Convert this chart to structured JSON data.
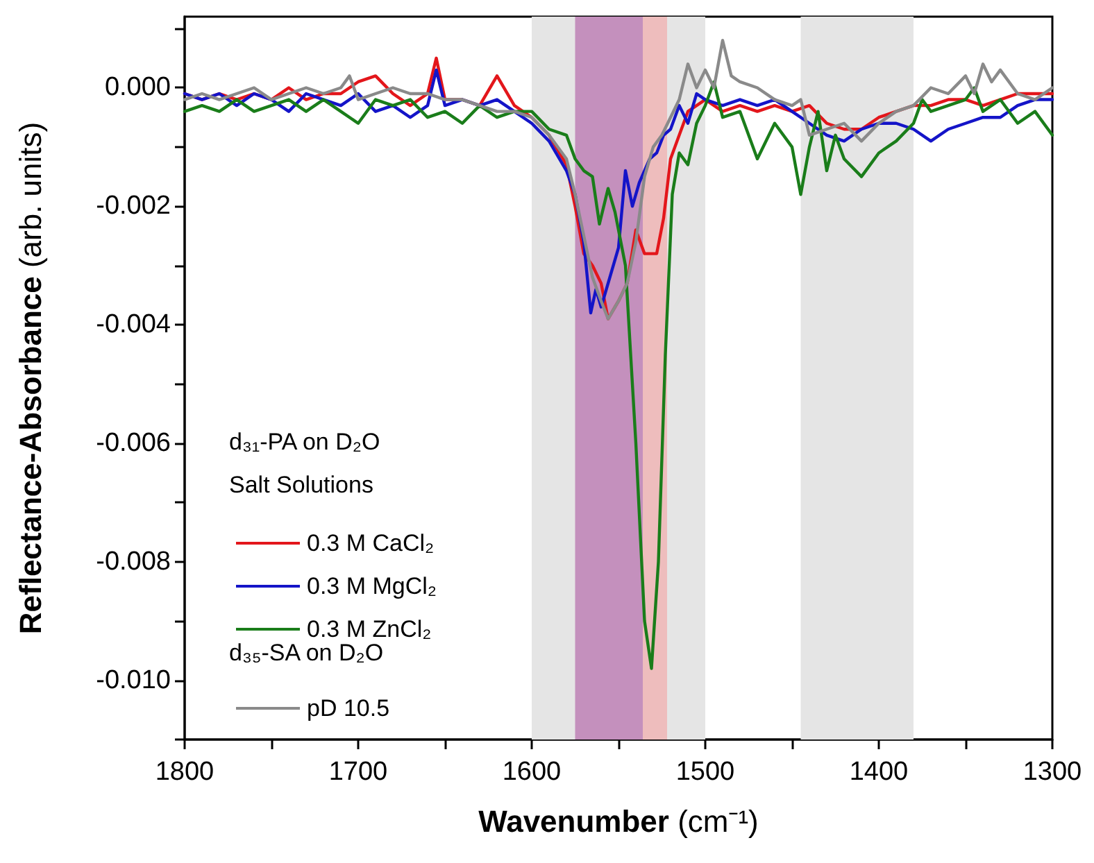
{
  "chart_data": {
    "type": "line",
    "xlabel": "Wavenumber (cm⁻¹)",
    "ylabel": "Reflectance-Absorbance (arb. units)",
    "annotations": [
      "d₃₁-PA on D₂O",
      "Salt Solutions",
      "d₃₅-SA on D₂O"
    ],
    "series": [
      {
        "name": "0.3 M CaCl₂",
        "color": "#e3161b",
        "x": [
          1800,
          1790,
          1780,
          1770,
          1760,
          1750,
          1740,
          1730,
          1720,
          1710,
          1700,
          1690,
          1680,
          1670,
          1660,
          1655,
          1650,
          1640,
          1630,
          1620,
          1610,
          1600,
          1590,
          1580,
          1575,
          1570,
          1565,
          1560,
          1556,
          1550,
          1545,
          1540,
          1535,
          1528,
          1524,
          1520,
          1515,
          1510,
          1500,
          1490,
          1480,
          1470,
          1460,
          1450,
          1440,
          1430,
          1420,
          1410,
          1400,
          1390,
          1380,
          1370,
          1360,
          1350,
          1340,
          1330,
          1320,
          1310,
          1300
        ],
        "values": [
          -0.0001,
          -0.0002,
          -0.0001,
          -0.0002,
          -0.0001,
          -0.0002,
          0.0,
          -0.0002,
          -0.0001,
          -0.0001,
          0.0001,
          0.0002,
          -0.0001,
          -0.0003,
          -0.0001,
          0.0005,
          -0.0002,
          -0.0002,
          -0.0003,
          0.0002,
          -0.0003,
          -0.0005,
          -0.0008,
          -0.0013,
          -0.002,
          -0.0028,
          -0.003,
          -0.0033,
          -0.0039,
          -0.0036,
          -0.0033,
          -0.0024,
          -0.0028,
          -0.0028,
          -0.0022,
          -0.0012,
          -0.0008,
          -0.0004,
          -0.0002,
          -0.0004,
          -0.0003,
          -0.0004,
          -0.0003,
          -0.0004,
          -0.0003,
          -0.0006,
          -0.0007,
          -0.0007,
          -0.0005,
          -0.0004,
          -0.0003,
          -0.0003,
          -0.0002,
          -0.0002,
          -0.0003,
          -0.0002,
          -0.0001,
          -0.0001,
          -0.0001
        ]
      },
      {
        "name": "0.3 M MgCl₂",
        "color": "#1414c8",
        "x": [
          1800,
          1790,
          1780,
          1770,
          1760,
          1750,
          1740,
          1730,
          1720,
          1710,
          1700,
          1690,
          1680,
          1670,
          1660,
          1655,
          1650,
          1640,
          1630,
          1620,
          1610,
          1600,
          1590,
          1580,
          1575,
          1570,
          1566,
          1563,
          1560,
          1555,
          1550,
          1546,
          1542,
          1538,
          1532,
          1528,
          1524,
          1520,
          1515,
          1510,
          1505,
          1500,
          1490,
          1480,
          1470,
          1460,
          1450,
          1440,
          1430,
          1420,
          1410,
          1400,
          1390,
          1380,
          1370,
          1360,
          1350,
          1340,
          1330,
          1320,
          1310,
          1300
        ],
        "values": [
          -0.0001,
          -0.0002,
          -0.0001,
          -0.0003,
          -0.0001,
          -0.0002,
          -0.0004,
          -0.0001,
          -0.0002,
          -0.0003,
          -0.0001,
          -0.0004,
          -0.0003,
          -0.0005,
          -0.0003,
          0.0003,
          -0.0003,
          -0.0002,
          -0.0003,
          -0.0002,
          -0.0004,
          -0.0006,
          -0.0009,
          -0.0014,
          -0.0018,
          -0.0026,
          -0.0038,
          -0.0034,
          -0.0037,
          -0.0032,
          -0.0027,
          -0.0014,
          -0.002,
          -0.0016,
          -0.0012,
          -0.0011,
          -0.0008,
          -0.0007,
          -0.0003,
          -0.0006,
          -0.0001,
          -0.0002,
          -0.0003,
          -0.0002,
          -0.0003,
          -0.0002,
          -0.0004,
          -0.0006,
          -0.0008,
          -0.0009,
          -0.0007,
          -0.0006,
          -0.0006,
          -0.0007,
          -0.0009,
          -0.0007,
          -0.0006,
          -0.0005,
          -0.0005,
          -0.0003,
          -0.0002,
          -0.0002
        ]
      },
      {
        "name": "0.3 M ZnCl₂",
        "color": "#1a7d1a",
        "x": [
          1800,
          1790,
          1780,
          1770,
          1760,
          1750,
          1740,
          1730,
          1720,
          1710,
          1700,
          1690,
          1680,
          1670,
          1660,
          1650,
          1640,
          1630,
          1620,
          1610,
          1600,
          1590,
          1580,
          1575,
          1570,
          1565,
          1561,
          1556,
          1552,
          1546,
          1540,
          1535,
          1531,
          1527,
          1523,
          1519,
          1515,
          1510,
          1505,
          1500,
          1495,
          1490,
          1480,
          1470,
          1460,
          1450,
          1445,
          1440,
          1435,
          1430,
          1425,
          1420,
          1410,
          1400,
          1390,
          1380,
          1375,
          1370,
          1360,
          1350,
          1345,
          1340,
          1330,
          1320,
          1310,
          1300
        ],
        "values": [
          -0.0004,
          -0.0003,
          -0.0004,
          -0.0002,
          -0.0004,
          -0.0003,
          -0.0002,
          -0.0004,
          -0.0002,
          -0.0004,
          -0.0006,
          -0.0002,
          -0.0003,
          -0.0002,
          -0.0005,
          -0.0004,
          -0.0006,
          -0.0003,
          -0.0005,
          -0.0004,
          -0.0004,
          -0.0007,
          -0.0008,
          -0.0012,
          -0.0014,
          -0.0015,
          -0.0023,
          -0.0017,
          -0.0021,
          -0.003,
          -0.006,
          -0.009,
          -0.0098,
          -0.008,
          -0.0045,
          -0.0018,
          -0.0011,
          -0.0013,
          -0.0006,
          -0.0003,
          0.0001,
          -0.0005,
          -0.0004,
          -0.0012,
          -0.0006,
          -0.001,
          -0.0018,
          -0.001,
          -0.0004,
          -0.0014,
          -0.0008,
          -0.0012,
          -0.0015,
          -0.0011,
          -0.0009,
          -0.0006,
          -0.0002,
          -0.0004,
          -0.0003,
          -0.0002,
          0.0,
          -0.0004,
          -0.0002,
          -0.0006,
          -0.0004,
          -0.0008
        ]
      },
      {
        "name": "pD 10.5",
        "color": "#8a8a8a",
        "x": [
          1800,
          1790,
          1780,
          1770,
          1760,
          1750,
          1740,
          1730,
          1720,
          1710,
          1705,
          1700,
          1690,
          1680,
          1670,
          1660,
          1650,
          1640,
          1630,
          1620,
          1610,
          1600,
          1590,
          1580,
          1575,
          1570,
          1565,
          1560,
          1556,
          1550,
          1545,
          1540,
          1535,
          1530,
          1525,
          1520,
          1515,
          1510,
          1505,
          1500,
          1495,
          1490,
          1485,
          1480,
          1470,
          1460,
          1450,
          1445,
          1440,
          1430,
          1420,
          1410,
          1400,
          1390,
          1380,
          1370,
          1360,
          1350,
          1345,
          1340,
          1335,
          1330,
          1320,
          1310,
          1300
        ],
        "values": [
          -0.0002,
          -0.0001,
          -0.0002,
          -0.0001,
          0.0,
          -0.0002,
          -0.0001,
          0.0,
          -0.0001,
          0.0,
          0.0002,
          -0.0002,
          -0.0001,
          0.0,
          -0.0001,
          -0.0001,
          -0.0002,
          -0.0002,
          -0.0003,
          -0.0004,
          -0.0004,
          -0.0005,
          -0.0008,
          -0.0012,
          -0.0018,
          -0.0025,
          -0.0032,
          -0.0036,
          -0.0039,
          -0.0036,
          -0.0033,
          -0.0026,
          -0.0015,
          -0.001,
          -0.0008,
          -0.0005,
          -0.0002,
          0.0004,
          0.0,
          0.0003,
          0.0,
          0.0008,
          0.0002,
          0.0001,
          0.0,
          -0.0002,
          -0.0003,
          -0.0002,
          -0.0008,
          -0.0007,
          -0.0006,
          -0.0009,
          -0.0006,
          -0.0004,
          -0.0003,
          0.0,
          -0.0001,
          0.0002,
          -0.0001,
          0.0004,
          0.0001,
          0.0003,
          -0.0001,
          -0.0002,
          0.0
        ]
      }
    ],
    "bands": [
      {
        "axis": "x",
        "from": 1600,
        "to": 1500,
        "color": "#e5e5e5"
      },
      {
        "axis": "x",
        "from": 1445,
        "to": 1380,
        "color": "#e5e5e5"
      },
      {
        "axis": "x",
        "from": 1575,
        "to": 1536,
        "color": "#c490bd"
      },
      {
        "axis": "x",
        "from": 1536,
        "to": 1522,
        "color": "#eebdbd"
      }
    ],
    "xlim": [
      1800,
      1300
    ],
    "xticks": [
      1800,
      {
        "value": 1750,
        "label": null
      },
      1700,
      {
        "value": 1650,
        "label": null
      },
      1600,
      {
        "value": 1550,
        "label": null
      },
      1500,
      {
        "value": 1450,
        "label": null
      },
      1400,
      {
        "value": 1350,
        "label": null
      },
      1300
    ],
    "ylim": [
      -0.011,
      0.0012
    ],
    "yticks": [
      {
        "value": -0.011,
        "label": null
      },
      {
        "value": -0.01,
        "label": "-0.010"
      },
      {
        "value": -0.009,
        "label": null
      },
      {
        "value": -0.008,
        "label": "-0.008"
      },
      {
        "value": -0.007,
        "label": null
      },
      {
        "value": -0.006,
        "label": "-0.006"
      },
      {
        "value": -0.005,
        "label": null
      },
      {
        "value": -0.004,
        "label": "-0.004"
      },
      {
        "value": -0.003,
        "label": null
      },
      {
        "value": -0.002,
        "label": "-0.002"
      },
      {
        "value": -0.001,
        "label": null
      },
      {
        "value": 0,
        "label": "0.000"
      },
      {
        "value": 0.001,
        "label": null
      }
    ],
    "grid": false,
    "legend": "bottom left",
    "line_style": "solid",
    "marker": "none"
  }
}
